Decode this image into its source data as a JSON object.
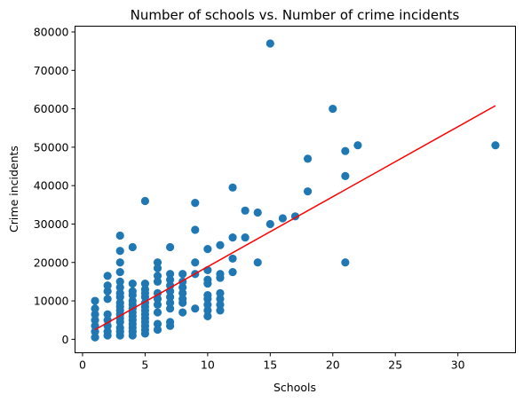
{
  "chart_data": {
    "type": "scatter",
    "title": "Number of schools vs. Number of crime incidents",
    "xlabel": "Schools",
    "ylabel": "Crime incidents",
    "xlim": [
      -0.6,
      34.6
    ],
    "ylim": [
      -3500,
      81500
    ],
    "xticks": [
      0,
      5,
      10,
      15,
      20,
      25,
      30
    ],
    "yticks": [
      0,
      10000,
      20000,
      30000,
      40000,
      50000,
      60000,
      70000,
      80000
    ],
    "grid": false,
    "point_color": "#1f77b4",
    "line_color": "#ff0000",
    "points": [
      [
        1,
        500
      ],
      [
        1,
        2000
      ],
      [
        1,
        3500
      ],
      [
        1,
        5000
      ],
      [
        1,
        6500
      ],
      [
        1,
        8000
      ],
      [
        1,
        10000
      ],
      [
        2,
        1000
      ],
      [
        2,
        2000
      ],
      [
        2,
        3500
      ],
      [
        2,
        5000
      ],
      [
        2,
        6500
      ],
      [
        2,
        10500
      ],
      [
        2,
        12500
      ],
      [
        2,
        14000
      ],
      [
        2,
        16500
      ],
      [
        3,
        1000
      ],
      [
        3,
        2000
      ],
      [
        3,
        3000
      ],
      [
        3,
        4500
      ],
      [
        3,
        5500
      ],
      [
        3,
        6500
      ],
      [
        3,
        7500
      ],
      [
        3,
        8500
      ],
      [
        3,
        9500
      ],
      [
        3,
        11000
      ],
      [
        3,
        12000
      ],
      [
        3,
        13500
      ],
      [
        3,
        15000
      ],
      [
        3,
        17500
      ],
      [
        3,
        20000
      ],
      [
        3,
        23000
      ],
      [
        3,
        27000
      ],
      [
        4,
        1000
      ],
      [
        4,
        2000
      ],
      [
        4,
        3000
      ],
      [
        4,
        4000
      ],
      [
        4,
        5000
      ],
      [
        4,
        6000
      ],
      [
        4,
        7000
      ],
      [
        4,
        8000
      ],
      [
        4,
        9000
      ],
      [
        4,
        10000
      ],
      [
        4,
        11500
      ],
      [
        4,
        12500
      ],
      [
        4,
        14500
      ],
      [
        4,
        24000
      ],
      [
        5,
        1500
      ],
      [
        5,
        2500
      ],
      [
        5,
        3500
      ],
      [
        5,
        4500
      ],
      [
        5,
        5500
      ],
      [
        5,
        6500
      ],
      [
        5,
        7500
      ],
      [
        5,
        8500
      ],
      [
        5,
        9500
      ],
      [
        5,
        11000
      ],
      [
        5,
        12000
      ],
      [
        5,
        13000
      ],
      [
        5,
        14500
      ],
      [
        5,
        36000
      ],
      [
        6,
        2500
      ],
      [
        6,
        4000
      ],
      [
        6,
        7000
      ],
      [
        6,
        9000
      ],
      [
        6,
        10500
      ],
      [
        6,
        12000
      ],
      [
        6,
        15000
      ],
      [
        6,
        16500
      ],
      [
        6,
        18500
      ],
      [
        6,
        20000
      ],
      [
        7,
        3500
      ],
      [
        7,
        4500
      ],
      [
        7,
        8000
      ],
      [
        7,
        9500
      ],
      [
        7,
        11000
      ],
      [
        7,
        12500
      ],
      [
        7,
        14000
      ],
      [
        7,
        15500
      ],
      [
        7,
        17000
      ],
      [
        7,
        24000
      ],
      [
        8,
        7000
      ],
      [
        8,
        9500
      ],
      [
        8,
        10500
      ],
      [
        8,
        12000
      ],
      [
        8,
        13500
      ],
      [
        8,
        15000
      ],
      [
        8,
        17000
      ],
      [
        9,
        8000
      ],
      [
        9,
        17000
      ],
      [
        9,
        20000
      ],
      [
        9,
        28500
      ],
      [
        9,
        35500
      ],
      [
        10,
        6000
      ],
      [
        10,
        7500
      ],
      [
        10,
        9000
      ],
      [
        10,
        10500
      ],
      [
        10,
        11500
      ],
      [
        10,
        14500
      ],
      [
        10,
        15500
      ],
      [
        10,
        18000
      ],
      [
        10,
        23500
      ],
      [
        11,
        7500
      ],
      [
        11,
        9000
      ],
      [
        11,
        10500
      ],
      [
        11,
        12000
      ],
      [
        11,
        16000
      ],
      [
        11,
        17000
      ],
      [
        11,
        24500
      ],
      [
        12,
        17500
      ],
      [
        12,
        21000
      ],
      [
        12,
        26500
      ],
      [
        12,
        39500
      ],
      [
        13,
        26500
      ],
      [
        13,
        33500
      ],
      [
        14,
        20000
      ],
      [
        14,
        33000
      ],
      [
        15,
        30000
      ],
      [
        15,
        77000
      ],
      [
        16,
        31500
      ],
      [
        17,
        32000
      ],
      [
        18,
        38500
      ],
      [
        18,
        47000
      ],
      [
        20,
        60000
      ],
      [
        21,
        20000
      ],
      [
        21,
        42500
      ],
      [
        21,
        49000
      ],
      [
        22,
        50500
      ],
      [
        33,
        50500
      ]
    ],
    "regression_line": {
      "x": [
        1,
        33
      ],
      "y": [
        2500,
        60800
      ]
    }
  }
}
